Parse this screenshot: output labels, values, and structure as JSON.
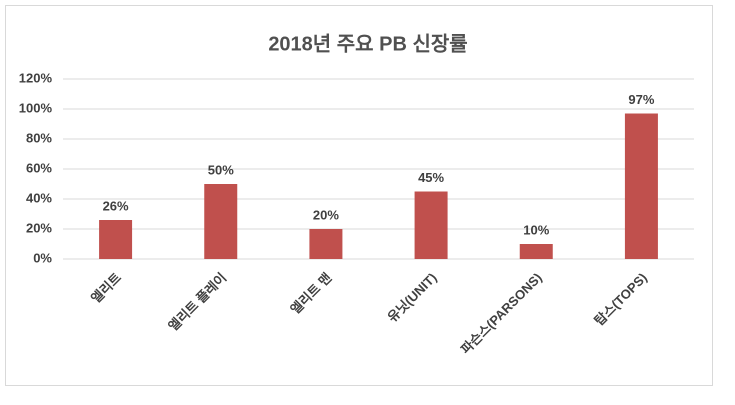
{
  "chart_data": {
    "type": "bar",
    "title": "2018년 주요 PB 신장률",
    "categories": [
      "엘리트",
      "엘리트 플레이",
      "엘리트 맨",
      "유닛(UNIT)",
      "파슨스(PARSONS)",
      "탑스(TOPS)"
    ],
    "values": [
      26,
      50,
      20,
      45,
      10,
      97
    ],
    "value_labels": [
      "26%",
      "50%",
      "20%",
      "45%",
      "10%",
      "97%"
    ],
    "color": "#c0504d",
    "ylim": [
      0,
      120
    ],
    "yticks": [
      {
        "value": 0,
        "label": "0%"
      },
      {
        "value": 20,
        "label": "20%"
      },
      {
        "value": 40,
        "label": "40%"
      },
      {
        "value": 60,
        "label": "60%"
      },
      {
        "value": 80,
        "label": "80%"
      },
      {
        "value": 100,
        "label": "100%"
      },
      {
        "value": 120,
        "label": "120%"
      }
    ],
    "grid": true
  }
}
